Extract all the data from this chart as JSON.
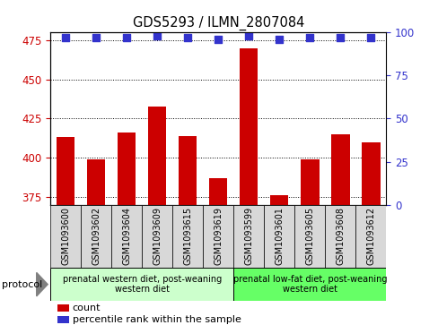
{
  "title": "GDS5293 / ILMN_2807084",
  "samples": [
    "GSM1093600",
    "GSM1093602",
    "GSM1093604",
    "GSM1093609",
    "GSM1093615",
    "GSM1093619",
    "GSM1093599",
    "GSM1093601",
    "GSM1093605",
    "GSM1093608",
    "GSM1093612"
  ],
  "counts": [
    413,
    399,
    416,
    433,
    414,
    387,
    470,
    376,
    399,
    415,
    410
  ],
  "percentiles": [
    97,
    97,
    97,
    98,
    97,
    96,
    98,
    96,
    97,
    97,
    97
  ],
  "ylim_left": [
    370,
    480
  ],
  "ylim_right": [
    0,
    100
  ],
  "yticks_left": [
    375,
    400,
    425,
    450,
    475
  ],
  "yticks_right": [
    0,
    25,
    50,
    75,
    100
  ],
  "bar_color": "#cc0000",
  "dot_color": "#3333cc",
  "group1_label": "prenatal western diet, post-weaning\nwestern diet",
  "group2_label": "prenatal low-fat diet, post-weaning\nwestern diet",
  "group1_indices": [
    0,
    1,
    2,
    3,
    4,
    5
  ],
  "group2_indices": [
    6,
    7,
    8,
    9,
    10
  ],
  "group1_color": "#ccffcc",
  "group2_color": "#66ff66",
  "sample_bg_color": "#d8d8d8",
  "legend_count_label": "count",
  "legend_pct_label": "percentile rank within the sample",
  "dot_size": 40
}
